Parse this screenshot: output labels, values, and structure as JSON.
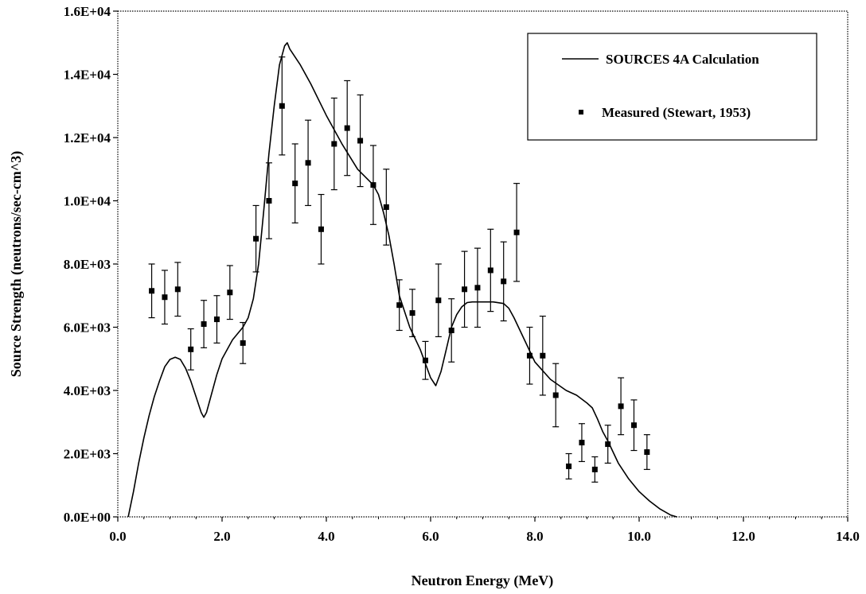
{
  "chart_data": {
    "type": "scatter",
    "title": "",
    "xlabel": "Neutron Energy (MeV)",
    "ylabel": "Source Strength (neutrons/sec-cm^3)",
    "xlim": [
      0,
      14
    ],
    "ylim": [
      0,
      16000
    ],
    "x_ticks": [
      0,
      2,
      4,
      6,
      8,
      10,
      12,
      14
    ],
    "x_tick_labels": [
      "0.0",
      "2.0",
      "4.0",
      "6.0",
      "8.0",
      "10.0",
      "12.0",
      "14.0"
    ],
    "y_ticks": [
      0,
      2000,
      4000,
      6000,
      8000,
      10000,
      12000,
      14000,
      16000
    ],
    "y_tick_labels": [
      "0.0E+00",
      "2.0E+03",
      "4.0E+03",
      "6.0E+03",
      "8.0E+03",
      "1.0E+04",
      "1.2E+04",
      "1.4E+04",
      "1.6E+04"
    ],
    "grid": false,
    "legend_position": "top-right",
    "series": [
      {
        "name": "SOURCES 4A Calculation",
        "kind": "line",
        "color": "#000000",
        "x": [
          0.2,
          0.3,
          0.4,
          0.5,
          0.6,
          0.7,
          0.8,
          0.9,
          1.0,
          1.1,
          1.2,
          1.3,
          1.4,
          1.5,
          1.6,
          1.65,
          1.7,
          1.8,
          1.9,
          2.0,
          2.2,
          2.4,
          2.5,
          2.6,
          2.7,
          2.8,
          2.9,
          3.0,
          3.1,
          3.2,
          3.25,
          3.3,
          3.5,
          3.7,
          4.0,
          4.3,
          4.6,
          4.9,
          5.0,
          5.1,
          5.2,
          5.3,
          5.4,
          5.6,
          5.8,
          6.0,
          6.1,
          6.2,
          6.3,
          6.4,
          6.5,
          6.6,
          6.7,
          6.8,
          7.0,
          7.2,
          7.4,
          7.5,
          7.6,
          7.8,
          8.0,
          8.3,
          8.6,
          8.8,
          9.0,
          9.1,
          9.2,
          9.3,
          9.4,
          9.6,
          9.8,
          10.0,
          10.2,
          10.4,
          10.6,
          10.72
        ],
        "y": [
          0,
          800,
          1700,
          2500,
          3200,
          3800,
          4300,
          4750,
          4980,
          5050,
          4980,
          4700,
          4300,
          3800,
          3300,
          3150,
          3300,
          3900,
          4500,
          5000,
          5600,
          6000,
          6300,
          6900,
          8000,
          9700,
          11500,
          13000,
          14300,
          14900,
          15000,
          14800,
          14300,
          13700,
          12700,
          11800,
          11000,
          10500,
          10200,
          9600,
          8900,
          8000,
          7000,
          6000,
          5300,
          4400,
          4150,
          4600,
          5300,
          6000,
          6400,
          6650,
          6780,
          6800,
          6800,
          6800,
          6750,
          6600,
          6300,
          5600,
          4900,
          4350,
          4000,
          3850,
          3600,
          3450,
          3100,
          2700,
          2400,
          1700,
          1200,
          800,
          500,
          250,
          60,
          0
        ]
      },
      {
        "name": "Measured (Stewart, 1953)",
        "kind": "points_with_errorbars",
        "color": "#000000",
        "points": [
          {
            "x": 0.65,
            "y": 7150,
            "err": 850
          },
          {
            "x": 0.9,
            "y": 6950,
            "err": 850
          },
          {
            "x": 1.15,
            "y": 7200,
            "err": 850
          },
          {
            "x": 1.4,
            "y": 5300,
            "err": 650
          },
          {
            "x": 1.65,
            "y": 6100,
            "err": 750
          },
          {
            "x": 1.9,
            "y": 6250,
            "err": 750
          },
          {
            "x": 2.15,
            "y": 7100,
            "err": 850
          },
          {
            "x": 2.4,
            "y": 5500,
            "err": 650
          },
          {
            "x": 2.65,
            "y": 8800,
            "err": 1050
          },
          {
            "x": 2.9,
            "y": 10000,
            "err": 1200
          },
          {
            "x": 3.15,
            "y": 13000,
            "err": 1550
          },
          {
            "x": 3.4,
            "y": 10550,
            "err": 1250
          },
          {
            "x": 3.65,
            "y": 11200,
            "err": 1350
          },
          {
            "x": 3.9,
            "y": 9100,
            "err": 1100
          },
          {
            "x": 4.15,
            "y": 11800,
            "err": 1450
          },
          {
            "x": 4.4,
            "y": 12300,
            "err": 1500
          },
          {
            "x": 4.65,
            "y": 11900,
            "err": 1450
          },
          {
            "x": 4.9,
            "y": 10500,
            "err": 1250
          },
          {
            "x": 5.15,
            "y": 9800,
            "err": 1200
          },
          {
            "x": 5.4,
            "y": 6700,
            "err": 800
          },
          {
            "x": 5.65,
            "y": 6450,
            "err": 750
          },
          {
            "x": 5.9,
            "y": 4950,
            "err": 600
          },
          {
            "x": 6.15,
            "y": 6850,
            "err": 1150
          },
          {
            "x": 6.4,
            "y": 5900,
            "err": 1000
          },
          {
            "x": 6.65,
            "y": 7200,
            "err": 1200
          },
          {
            "x": 6.9,
            "y": 7250,
            "err": 1250
          },
          {
            "x": 7.15,
            "y": 7800,
            "err": 1300
          },
          {
            "x": 7.4,
            "y": 7450,
            "err": 1250
          },
          {
            "x": 7.65,
            "y": 9000,
            "err": 1550
          },
          {
            "x": 7.9,
            "y": 5100,
            "err": 900
          },
          {
            "x": 8.15,
            "y": 5100,
            "err": 1250
          },
          {
            "x": 8.4,
            "y": 3850,
            "err": 1000
          },
          {
            "x": 8.65,
            "y": 1600,
            "err": 400
          },
          {
            "x": 8.9,
            "y": 2350,
            "err": 600
          },
          {
            "x": 9.15,
            "y": 1500,
            "err": 400
          },
          {
            "x": 9.4,
            "y": 2300,
            "err": 600
          },
          {
            "x": 9.65,
            "y": 3500,
            "err": 900
          },
          {
            "x": 9.9,
            "y": 2900,
            "err": 800
          },
          {
            "x": 10.15,
            "y": 2050,
            "err": 550
          }
        ]
      }
    ]
  }
}
